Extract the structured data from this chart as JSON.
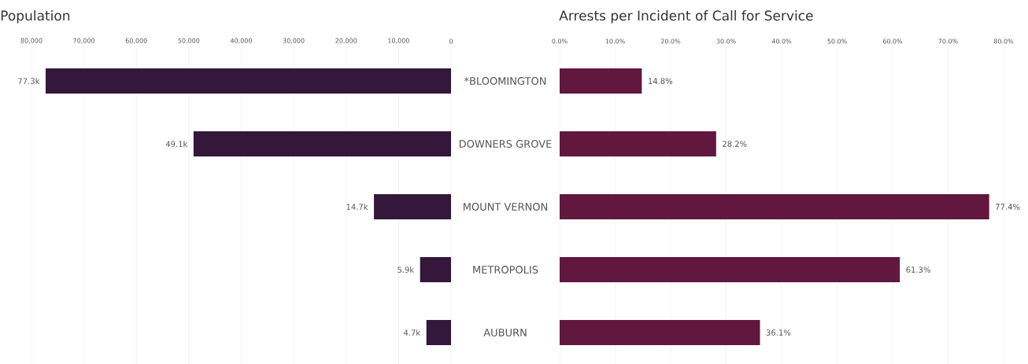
{
  "chart_data": [
    {
      "type": "bar",
      "orientation": "horizontal",
      "title": "Population",
      "categories": [
        "*BLOOMINGTON",
        "DOWNERS GROVE",
        "MOUNT VERNON",
        "METROPOLIS",
        "AUBURN"
      ],
      "values": [
        77300,
        49100,
        14700,
        5900,
        4700
      ],
      "value_labels": [
        "77.3k",
        "49.1k",
        "14.7k",
        "5.9k",
        "4.7k"
      ],
      "color": "#35173b",
      "xlim": [
        80000,
        0
      ],
      "xticks": [
        {
          "value": 80000,
          "label": "80,000"
        },
        {
          "value": 70000,
          "label": "70,000"
        },
        {
          "value": 60000,
          "label": "60,000"
        },
        {
          "value": 50000,
          "label": "50,000"
        },
        {
          "value": 40000,
          "label": "40,000"
        },
        {
          "value": 30000,
          "label": "30,000"
        },
        {
          "value": 20000,
          "label": "20,000"
        },
        {
          "value": 10000,
          "label": "10,000"
        },
        0
      ],
      "grid": "x"
    },
    {
      "type": "bar",
      "orientation": "horizontal",
      "title": "Arrests per Incident of Call for Service",
      "categories": [
        null,
        null,
        null,
        null,
        null
      ],
      "values": [
        14.8,
        28.2,
        77.4,
        61.3,
        36.1
      ],
      "value_labels": [
        "14.8%",
        "28.2%",
        "77.4%",
        "61.3%",
        "36.1%"
      ],
      "color": "#61173e",
      "xlim": [
        0,
        80
      ],
      "xticks": [
        {
          "value": 0,
          "label": "0.0%"
        },
        {
          "value": 10,
          "label": "10.0%"
        },
        {
          "value": 20,
          "label": "20.0%"
        },
        {
          "value": 30,
          "label": "30.0%"
        },
        {
          "value": 40,
          "label": "40.0%"
        },
        {
          "value": 50,
          "label": "50.0%"
        },
        {
          "value": 60,
          "label": "60.0%"
        },
        {
          "value": 70,
          "label": "70.0%"
        },
        {
          "value": 80,
          "label": "80.0%"
        }
      ],
      "grid": "x"
    }
  ]
}
